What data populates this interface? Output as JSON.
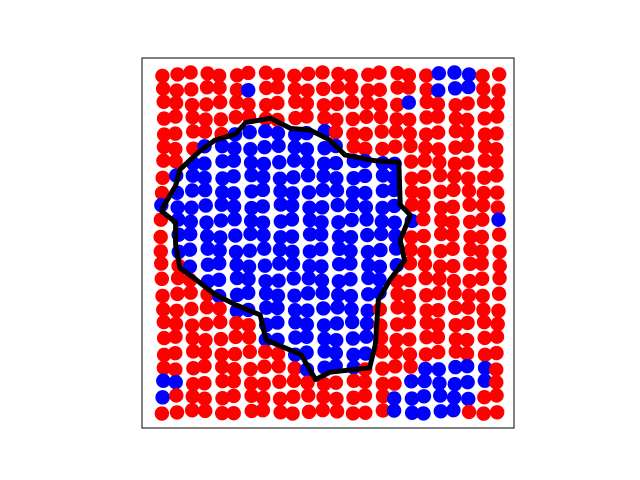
{
  "chart_data": {
    "type": "lattice",
    "xlim": [
      -1.4,
      24.1
    ],
    "ylim": [
      24.1,
      -1.1
    ],
    "palette": [
      "#ff0000",
      "#0000ff"
    ],
    "contour_color": "#000000",
    "cells": [
      [
        0,
        0,
        0,
        0,
        0,
        0,
        0,
        0,
        0,
        0,
        0,
        0,
        0,
        0,
        0,
        0,
        0,
        0,
        0,
        1,
        1,
        1,
        0,
        0
      ],
      [
        0,
        0,
        0,
        0,
        0,
        0,
        1,
        0,
        0,
        0,
        0,
        0,
        0,
        0,
        0,
        0,
        0,
        0,
        0,
        1,
        1,
        1,
        0,
        0
      ],
      [
        0,
        0,
        0,
        0,
        0,
        0,
        0,
        0,
        0,
        0,
        0,
        0,
        0,
        0,
        0,
        0,
        0,
        1,
        0,
        0,
        0,
        0,
        0,
        0
      ],
      [
        0,
        0,
        0,
        0,
        0,
        0,
        0,
        0,
        0,
        0,
        0,
        0,
        0,
        0,
        0,
        0,
        0,
        0,
        0,
        0,
        0,
        0,
        0,
        0
      ],
      [
        0,
        0,
        0,
        0,
        0,
        1,
        1,
        1,
        1,
        1,
        1,
        1,
        0,
        0,
        0,
        0,
        0,
        0,
        0,
        0,
        0,
        0,
        0,
        0
      ],
      [
        0,
        0,
        0,
        1,
        1,
        1,
        1,
        1,
        1,
        1,
        1,
        1,
        1,
        0,
        0,
        0,
        0,
        0,
        0,
        0,
        0,
        0,
        0,
        0
      ],
      [
        0,
        0,
        1,
        1,
        1,
        1,
        1,
        1,
        1,
        1,
        1,
        1,
        1,
        1,
        1,
        1,
        1,
        0,
        0,
        0,
        0,
        0,
        0,
        0
      ],
      [
        0,
        1,
        1,
        1,
        1,
        1,
        1,
        1,
        1,
        1,
        1,
        1,
        1,
        1,
        1,
        1,
        1,
        0,
        0,
        0,
        0,
        0,
        0,
        0
      ],
      [
        0,
        1,
        1,
        1,
        1,
        1,
        1,
        1,
        1,
        1,
        1,
        1,
        1,
        1,
        1,
        1,
        1,
        0,
        0,
        0,
        0,
        0,
        0,
        0
      ],
      [
        1,
        1,
        1,
        1,
        1,
        1,
        1,
        1,
        1,
        1,
        1,
        1,
        1,
        1,
        1,
        1,
        1,
        0,
        0,
        0,
        0,
        0,
        0,
        0
      ],
      [
        0,
        1,
        1,
        1,
        1,
        1,
        1,
        1,
        1,
        1,
        1,
        1,
        1,
        1,
        1,
        1,
        1,
        1,
        0,
        0,
        0,
        0,
        0,
        1
      ],
      [
        0,
        1,
        1,
        1,
        1,
        1,
        1,
        1,
        1,
        1,
        1,
        1,
        1,
        1,
        1,
        1,
        1,
        0,
        0,
        0,
        0,
        0,
        0,
        0
      ],
      [
        0,
        1,
        1,
        1,
        1,
        1,
        1,
        1,
        1,
        1,
        1,
        1,
        1,
        1,
        1,
        1,
        1,
        0,
        0,
        0,
        0,
        0,
        0,
        0
      ],
      [
        0,
        0,
        1,
        1,
        1,
        1,
        1,
        1,
        1,
        1,
        1,
        1,
        1,
        1,
        1,
        1,
        1,
        0,
        0,
        0,
        0,
        0,
        0,
        0
      ],
      [
        0,
        0,
        0,
        1,
        1,
        1,
        1,
        1,
        1,
        1,
        1,
        1,
        1,
        1,
        1,
        1,
        0,
        0,
        0,
        0,
        0,
        0,
        0,
        0
      ],
      [
        0,
        0,
        0,
        0,
        1,
        1,
        1,
        1,
        1,
        1,
        1,
        1,
        1,
        1,
        1,
        1,
        0,
        0,
        0,
        0,
        0,
        0,
        0,
        0
      ],
      [
        0,
        0,
        0,
        0,
        0,
        1,
        1,
        1,
        1,
        1,
        1,
        1,
        1,
        1,
        1,
        0,
        0,
        0,
        0,
        0,
        0,
        0,
        0,
        0
      ],
      [
        0,
        0,
        0,
        0,
        0,
        0,
        0,
        1,
        1,
        1,
        1,
        1,
        1,
        1,
        1,
        0,
        0,
        0,
        0,
        0,
        0,
        0,
        0,
        0
      ],
      [
        0,
        0,
        0,
        0,
        0,
        0,
        0,
        1,
        1,
        1,
        1,
        1,
        1,
        1,
        1,
        0,
        0,
        0,
        0,
        0,
        0,
        0,
        0,
        0
      ],
      [
        0,
        0,
        0,
        0,
        0,
        0,
        0,
        0,
        0,
        1,
        1,
        1,
        1,
        1,
        1,
        0,
        0,
        0,
        0,
        0,
        0,
        0,
        0,
        0
      ],
      [
        0,
        0,
        0,
        0,
        0,
        0,
        0,
        0,
        0,
        0,
        1,
        1,
        1,
        1,
        0,
        0,
        0,
        0,
        1,
        1,
        1,
        1,
        1,
        0
      ],
      [
        1,
        1,
        0,
        0,
        0,
        0,
        0,
        0,
        0,
        0,
        0,
        0,
        0,
        0,
        0,
        0,
        0,
        1,
        1,
        1,
        1,
        1,
        1,
        0
      ],
      [
        1,
        0,
        0,
        0,
        0,
        0,
        0,
        0,
        0,
        0,
        0,
        0,
        0,
        0,
        0,
        0,
        1,
        1,
        1,
        1,
        1,
        1,
        0,
        0
      ],
      [
        0,
        0,
        0,
        0,
        0,
        0,
        0,
        0,
        0,
        0,
        0,
        0,
        0,
        0,
        0,
        0,
        1,
        1,
        1,
        1,
        1,
        0,
        0,
        0
      ]
    ],
    "contour": {
      "x": [
        -0.1,
        0.9,
        1.2,
        2.6,
        3.6,
        5,
        5.7,
        7.4,
        8.8,
        10.1,
        11.5,
        12.5,
        14.6,
        16.2,
        16.3,
        17,
        16.3,
        16.6,
        15.6,
        14.8,
        14.6,
        14.2,
        11.5,
        10.5,
        9.5,
        7.1,
        6.7,
        5,
        3.6,
        2.3,
        1.2,
        0.9,
        0.9,
        -0.1
      ],
      "y": [
        9.3,
        7.6,
        6.5,
        5.2,
        4.5,
        4.1,
        3.3,
        3.0,
        3.7,
        3.8,
        4.5,
        5.5,
        5.9,
        6.0,
        8.9,
        9.6,
        11.3,
        12.7,
        14,
        15.4,
        18.4,
        20,
        20.3,
        20.8,
        19.1,
        18.1,
        16.4,
        15.7,
        15,
        14,
        13.2,
        11.6,
        10.1,
        9.3
      ]
    }
  }
}
